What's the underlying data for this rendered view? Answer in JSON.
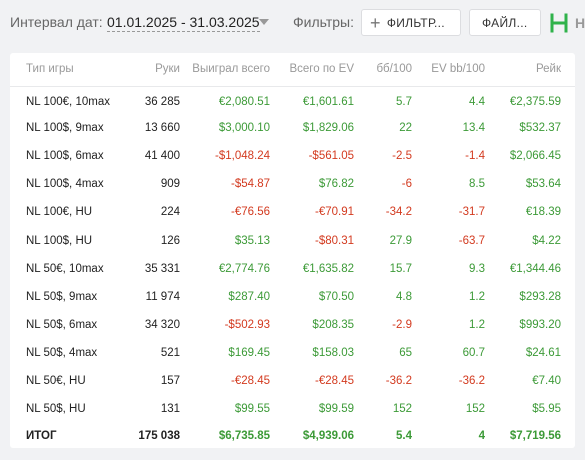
{
  "header": {
    "range_label": "Интервал дат:",
    "range_value": "01.01.2025 - 31.03.2025",
    "filters_label": "Фильтры:",
    "filter_button": "ФИЛЬТР...",
    "file_button": "ФАЙЛ...",
    "logo_text": "H",
    "accent_color": "#2fb24a"
  },
  "table": {
    "columns": [
      "Тип игры",
      "Руки",
      "Выиграл всего",
      "Всего по EV",
      "бб/100",
      "EV bb/100",
      "Рейк"
    ],
    "rows": [
      {
        "game": "NL 100€, 10max",
        "hands": "36 285",
        "won": "€2,080.51",
        "won_s": "pos",
        "ev": "€1,601.61",
        "ev_s": "pos",
        "bb": "5.7",
        "bb_s": "pos",
        "evbb": "4.4",
        "evbb_s": "pos",
        "rake": "€2,375.59"
      },
      {
        "game": "NL 100$, 9max",
        "hands": "13 660",
        "won": "$3,000.10",
        "won_s": "pos",
        "ev": "$1,829.06",
        "ev_s": "pos",
        "bb": "22",
        "bb_s": "pos",
        "evbb": "13.4",
        "evbb_s": "pos",
        "rake": "$532.37"
      },
      {
        "game": "NL 100$, 6max",
        "hands": "41 400",
        "won": "-$1,048.24",
        "won_s": "neg",
        "ev": "-$561.05",
        "ev_s": "neg",
        "bb": "-2.5",
        "bb_s": "neg",
        "evbb": "-1.4",
        "evbb_s": "neg",
        "rake": "$2,066.45"
      },
      {
        "game": "NL 100$, 4max",
        "hands": "909",
        "won": "-$54.87",
        "won_s": "neg",
        "ev": "$76.82",
        "ev_s": "pos",
        "bb": "-6",
        "bb_s": "neg",
        "evbb": "8.5",
        "evbb_s": "pos",
        "rake": "$53.64"
      },
      {
        "game": "NL 100€, HU",
        "hands": "224",
        "won": "-€76.56",
        "won_s": "neg",
        "ev": "-€70.91",
        "ev_s": "neg",
        "bb": "-34.2",
        "bb_s": "neg",
        "evbb": "-31.7",
        "evbb_s": "neg",
        "rake": "€18.39"
      },
      {
        "game": "NL 100$, HU",
        "hands": "126",
        "won": "$35.13",
        "won_s": "pos",
        "ev": "-$80.31",
        "ev_s": "neg",
        "bb": "27.9",
        "bb_s": "pos",
        "evbb": "-63.7",
        "evbb_s": "neg",
        "rake": "$4.22"
      },
      {
        "game": "NL 50€, 10max",
        "hands": "35 331",
        "won": "€2,774.76",
        "won_s": "pos",
        "ev": "€1,635.82",
        "ev_s": "pos",
        "bb": "15.7",
        "bb_s": "pos",
        "evbb": "9.3",
        "evbb_s": "pos",
        "rake": "€1,344.46"
      },
      {
        "game": "NL 50$, 9max",
        "hands": "11 974",
        "won": "$287.40",
        "won_s": "pos",
        "ev": "$70.50",
        "ev_s": "pos",
        "bb": "4.8",
        "bb_s": "pos",
        "evbb": "1.2",
        "evbb_s": "pos",
        "rake": "$293.28"
      },
      {
        "game": "NL 50$, 6max",
        "hands": "34 320",
        "won": "-$502.93",
        "won_s": "neg",
        "ev": "$208.35",
        "ev_s": "pos",
        "bb": "-2.9",
        "bb_s": "neg",
        "evbb": "1.2",
        "evbb_s": "pos",
        "rake": "$993.20"
      },
      {
        "game": "NL 50$, 4max",
        "hands": "521",
        "won": "$169.45",
        "won_s": "pos",
        "ev": "$158.03",
        "ev_s": "pos",
        "bb": "65",
        "bb_s": "pos",
        "evbb": "60.7",
        "evbb_s": "pos",
        "rake": "$24.61"
      },
      {
        "game": "NL 50€, HU",
        "hands": "157",
        "won": "-€28.45",
        "won_s": "neg",
        "ev": "-€28.45",
        "ev_s": "neg",
        "bb": "-36.2",
        "bb_s": "neg",
        "evbb": "-36.2",
        "evbb_s": "neg",
        "rake": "€7.40"
      },
      {
        "game": "NL 50$, HU",
        "hands": "131",
        "won": "$99.55",
        "won_s": "pos",
        "ev": "$99.59",
        "ev_s": "pos",
        "bb": "152",
        "bb_s": "pos",
        "evbb": "152",
        "evbb_s": "pos",
        "rake": "$5.95"
      }
    ],
    "total": {
      "game": "ИТОГ",
      "hands": "175 038",
      "won": "$6,735.85",
      "ev": "$4,939.06",
      "bb": "5.4",
      "evbb": "4",
      "rake": "$7,719.56"
    }
  }
}
